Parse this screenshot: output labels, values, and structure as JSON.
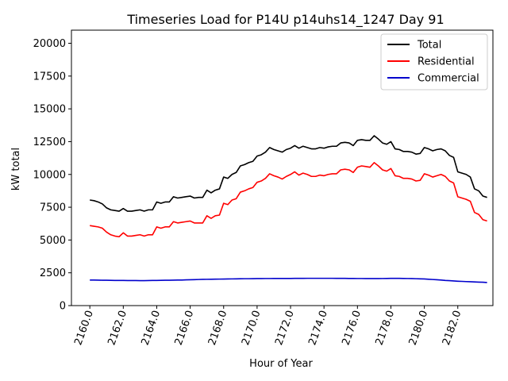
{
  "chart_data": {
    "type": "line",
    "title": "Timeseries Load for P14U p14uhs14_1247  Day 91",
    "xlabel": "Hour of Year",
    "ylabel": "kW total",
    "xlim": [
      2158.9,
      2184.1
    ],
    "ylim": [
      0,
      21000
    ],
    "xticks": [
      2160,
      2162,
      2164,
      2166,
      2168,
      2170,
      2172,
      2174,
      2176,
      2178,
      2180,
      2182
    ],
    "xtick_labels": [
      "2160.0",
      "2162.0",
      "2164.0",
      "2166.0",
      "2168.0",
      "2170.0",
      "2172.0",
      "2174.0",
      "2176.0",
      "2178.0",
      "2180.0",
      "2182.0"
    ],
    "yticks": [
      0,
      2500,
      5000,
      7500,
      10000,
      12500,
      15000,
      17500,
      20000
    ],
    "ytick_labels": [
      "0",
      "2500",
      "5000",
      "7500",
      "10000",
      "12500",
      "15000",
      "17500",
      "20000"
    ],
    "legend_position": "top-right",
    "grid": false,
    "x": [
      2160.0,
      2160.25,
      2160.5,
      2160.75,
      2161.0,
      2161.25,
      2161.5,
      2161.75,
      2162.0,
      2162.25,
      2162.5,
      2162.75,
      2163.0,
      2163.25,
      2163.5,
      2163.75,
      2164.0,
      2164.25,
      2164.5,
      2164.75,
      2165.0,
      2165.25,
      2165.5,
      2165.75,
      2166.0,
      2166.25,
      2166.5,
      2166.75,
      2167.0,
      2167.25,
      2167.5,
      2167.75,
      2168.0,
      2168.25,
      2168.5,
      2168.75,
      2169.0,
      2169.25,
      2169.5,
      2169.75,
      2170.0,
      2170.25,
      2170.5,
      2170.75,
      2171.0,
      2171.25,
      2171.5,
      2171.75,
      2172.0,
      2172.25,
      2172.5,
      2172.75,
      2173.0,
      2173.25,
      2173.5,
      2173.75,
      2174.0,
      2174.25,
      2174.5,
      2174.75,
      2175.0,
      2175.25,
      2175.5,
      2175.75,
      2176.0,
      2176.25,
      2176.5,
      2176.75,
      2177.0,
      2177.25,
      2177.5,
      2177.75,
      2178.0,
      2178.25,
      2178.5,
      2178.75,
      2179.0,
      2179.25,
      2179.5,
      2179.75,
      2180.0,
      2180.25,
      2180.5,
      2180.75,
      2181.0,
      2181.25,
      2181.5,
      2181.75,
      2182.0,
      2182.25,
      2182.5,
      2182.75,
      2183.0,
      2183.25,
      2183.5,
      2183.75
    ],
    "series": [
      {
        "name": "Total",
        "color": "#000000",
        "values": [
          8050,
          8000,
          7900,
          7750,
          7450,
          7300,
          7250,
          7200,
          7400,
          7200,
          7200,
          7250,
          7300,
          7200,
          7300,
          7300,
          7900,
          7800,
          7900,
          7900,
          8300,
          8200,
          8250,
          8300,
          8350,
          8200,
          8250,
          8250,
          8800,
          8600,
          8800,
          8900,
          9800,
          9700,
          10000,
          10150,
          10650,
          10750,
          10900,
          11000,
          11400,
          11500,
          11700,
          12050,
          11900,
          11800,
          11700,
          11900,
          12000,
          12200,
          12000,
          12150,
          12050,
          11950,
          11950,
          12050,
          12000,
          12100,
          12150,
          12150,
          12400,
          12450,
          12400,
          12200,
          12600,
          12650,
          12600,
          12600,
          12950,
          12700,
          12400,
          12300,
          12500,
          11950,
          11900,
          11750,
          11750,
          11700,
          11550,
          11600,
          12050,
          11950,
          11800,
          11900,
          11950,
          11800,
          11450,
          11300,
          10200,
          10100,
          10000,
          9800,
          8900,
          8750,
          8350,
          8250
        ]
      },
      {
        "name": "Residential",
        "color": "#ff0000",
        "values": [
          6100,
          6050,
          6000,
          5900,
          5600,
          5400,
          5300,
          5250,
          5550,
          5300,
          5300,
          5350,
          5400,
          5300,
          5400,
          5400,
          6000,
          5900,
          6000,
          6000,
          6400,
          6300,
          6350,
          6400,
          6450,
          6300,
          6300,
          6300,
          6850,
          6650,
          6850,
          6900,
          7800,
          7700,
          8050,
          8150,
          8650,
          8750,
          8900,
          9000,
          9400,
          9500,
          9700,
          10050,
          9900,
          9800,
          9650,
          9850,
          10000,
          10200,
          9950,
          10100,
          10000,
          9850,
          9850,
          9950,
          9900,
          10000,
          10050,
          10050,
          10350,
          10400,
          10350,
          10150,
          10550,
          10650,
          10600,
          10550,
          10900,
          10650,
          10350,
          10250,
          10450,
          9900,
          9850,
          9700,
          9700,
          9650,
          9500,
          9550,
          10050,
          9950,
          9800,
          9900,
          10000,
          9850,
          9500,
          9350,
          8300,
          8200,
          8100,
          7950,
          7100,
          6950,
          6550,
          6450
        ]
      },
      {
        "name": "Commercial",
        "color": "#0000cc",
        "values": [
          1950,
          1945,
          1940,
          1935,
          1930,
          1925,
          1920,
          1915,
          1915,
          1910,
          1910,
          1910,
          1905,
          1905,
          1910,
          1915,
          1920,
          1925,
          1930,
          1935,
          1940,
          1945,
          1950,
          1960,
          1970,
          1980,
          1990,
          2000,
          2005,
          2010,
          2015,
          2020,
          2025,
          2030,
          2035,
          2040,
          2045,
          2050,
          2050,
          2055,
          2060,
          2060,
          2065,
          2065,
          2070,
          2070,
          2070,
          2070,
          2070,
          2075,
          2075,
          2075,
          2080,
          2080,
          2080,
          2080,
          2080,
          2080,
          2080,
          2075,
          2075,
          2075,
          2070,
          2070,
          2065,
          2065,
          2060,
          2060,
          2060,
          2060,
          2065,
          2070,
          2075,
          2075,
          2075,
          2070,
          2065,
          2060,
          2050,
          2040,
          2030,
          2010,
          1990,
          1970,
          1950,
          1920,
          1900,
          1880,
          1860,
          1845,
          1830,
          1820,
          1805,
          1790,
          1780,
          1760
        ]
      }
    ]
  }
}
